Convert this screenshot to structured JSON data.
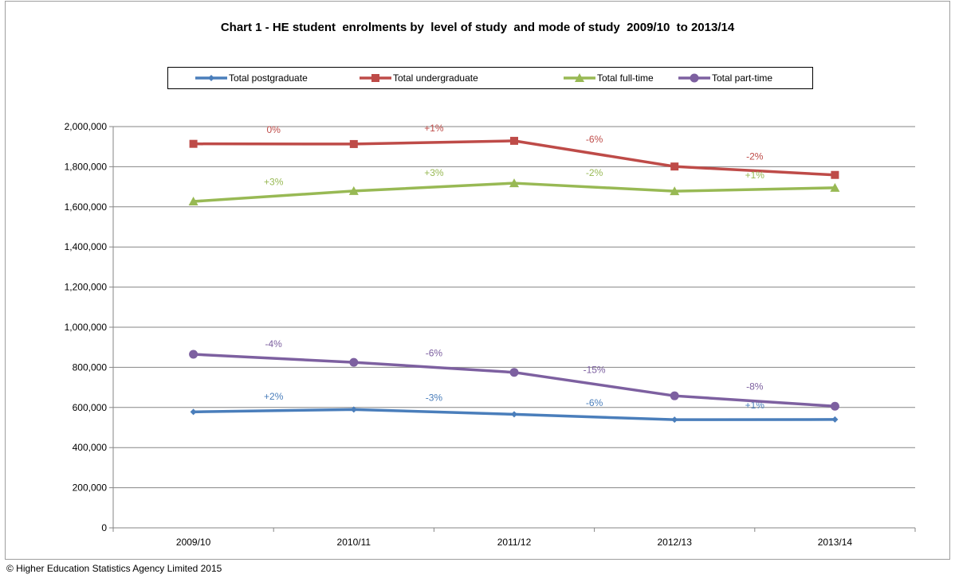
{
  "chart_data": {
    "type": "line",
    "title": "Chart 1 - HE student  enrolments by  level of study  and mode of study  2009/10  to 2013/14",
    "categories": [
      "2009/10",
      "2010/11",
      "2011/12",
      "2012/13",
      "2013/14"
    ],
    "ylim": [
      0,
      2000000
    ],
    "yticks": [
      0,
      200000,
      400000,
      600000,
      800000,
      1000000,
      1200000,
      1400000,
      1600000,
      1800000,
      2000000
    ],
    "ytick_labels": [
      "0",
      "200,000",
      "400,000",
      "600,000",
      "800,000",
      "1,000,000",
      "1,200,000",
      "1,400,000",
      "1,600,000",
      "1,800,000",
      "2,000,000"
    ],
    "grid": true,
    "legend_position": "top",
    "series": [
      {
        "name": "Total postgraduate",
        "color": "#4a7ebb",
        "marker": "diamond",
        "values": [
          578000,
          590000,
          566000,
          539000,
          540000
        ],
        "change_labels": [
          "+2%",
          "-3%",
          "-6%",
          "+1%"
        ]
      },
      {
        "name": "Total undergraduate",
        "color": "#be4b48",
        "marker": "square",
        "values": [
          1914000,
          1913000,
          1929000,
          1801000,
          1759000
        ],
        "change_labels": [
          "0%",
          "+1%",
          "-6%",
          "-2%"
        ]
      },
      {
        "name": "Total full-time",
        "color": "#98b954",
        "marker": "triangle",
        "values": [
          1627000,
          1679000,
          1718000,
          1678000,
          1695000
        ],
        "change_labels": [
          "+3%",
          "+3%",
          "-2%",
          "+1%"
        ]
      },
      {
        "name": "Total part-time",
        "color": "#7d60a0",
        "marker": "circle",
        "values": [
          865000,
          825000,
          775000,
          658000,
          606000
        ],
        "change_labels": [
          "-4%",
          "-6%",
          "-15%",
          "-8%"
        ]
      }
    ]
  },
  "footer": {
    "source": "© Higher Education Statistics Agency Limited 2015"
  }
}
